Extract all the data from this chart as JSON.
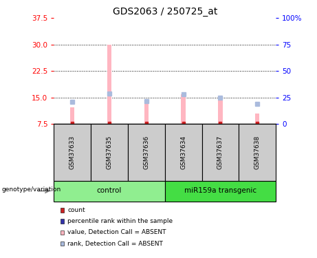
{
  "title": "GDS2063 / 250725_at",
  "samples": [
    "GSM37633",
    "GSM37635",
    "GSM37636",
    "GSM37634",
    "GSM37637",
    "GSM37638"
  ],
  "group_spans": [
    {
      "name": "control",
      "start": 0,
      "end": 2,
      "color": "#90EE90"
    },
    {
      "name": "miR159a transgenic",
      "start": 3,
      "end": 5,
      "color": "#44DD44"
    }
  ],
  "ylim_left": [
    7.5,
    37.5
  ],
  "yticks_left": [
    7.5,
    15.0,
    22.5,
    30.0,
    37.5
  ],
  "ylim_right": [
    0,
    100
  ],
  "yticks_right": [
    0,
    25,
    50,
    75,
    100
  ],
  "ytick_labels_right": [
    "0",
    "25",
    "50",
    "75",
    "100%"
  ],
  "bar_top_values": [
    12.2,
    30.0,
    13.5,
    15.8,
    15.2,
    10.5
  ],
  "rank_values": [
    13.8,
    16.1,
    13.9,
    15.9,
    14.9,
    13.2
  ],
  "bar_bottom": 7.5,
  "bar_color_absent": "#FFB6C1",
  "rank_color_absent": "#AABBDD",
  "red_square_color": "#CC2222",
  "blue_square_color": "#3333AA",
  "dotted_grid": [
    15.0,
    22.5,
    30.0
  ],
  "legend_items": [
    {
      "label": "count",
      "color": "#CC2222"
    },
    {
      "label": "percentile rank within the sample",
      "color": "#3333AA"
    },
    {
      "label": "value, Detection Call = ABSENT",
      "color": "#FFB6C1"
    },
    {
      "label": "rank, Detection Call = ABSENT",
      "color": "#AABBDD"
    }
  ],
  "group_label": "genotype/variation",
  "background_color": "#FFFFFF",
  "sample_box_color": "#CCCCCC",
  "bar_width": 0.12
}
